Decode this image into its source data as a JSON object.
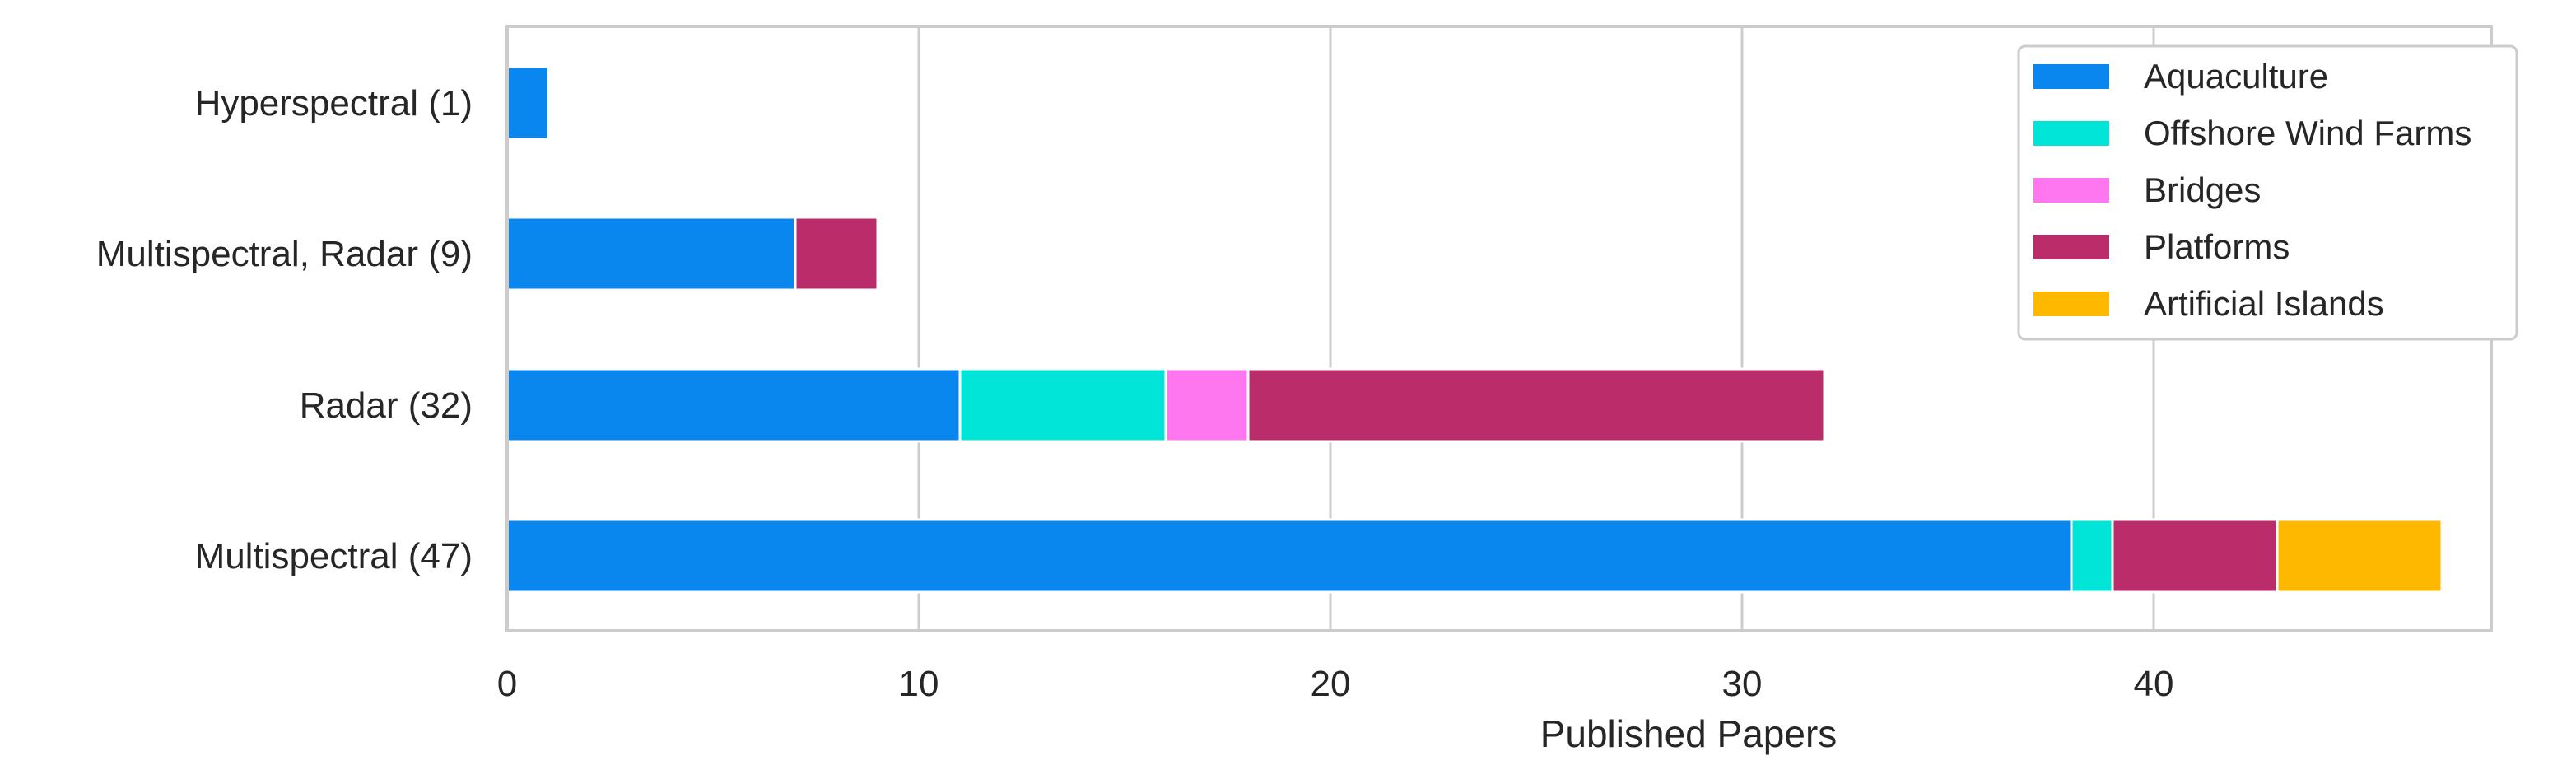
{
  "chart_data": {
    "type": "bar",
    "orientation": "horizontal",
    "stacked": true,
    "title": "",
    "xlabel": "Published Papers",
    "ylabel": "",
    "xlim": [
      0,
      49
    ],
    "xticks": [
      0,
      10,
      20,
      30,
      40
    ],
    "grid": true,
    "legend_position": "top-right",
    "categories": [
      "Hyperspectral (1)",
      "Multispectral, Radar (9)",
      "Radar (32)",
      "Multispectral (47)"
    ],
    "series": [
      {
        "name": "Aquaculture",
        "color": "#0a87ee",
        "values": [
          1,
          7,
          11,
          38
        ]
      },
      {
        "name": "Offshore Wind Farms",
        "color": "#00e5d8",
        "values": [
          0,
          0,
          5,
          1
        ]
      },
      {
        "name": "Bridges",
        "color": "#ff77ee",
        "values": [
          0,
          0,
          2,
          0
        ]
      },
      {
        "name": "Platforms",
        "color": "#bb2c6a",
        "values": [
          0,
          2,
          14,
          4
        ]
      },
      {
        "name": "Artificial Islands",
        "color": "#ffb800",
        "values": [
          0,
          0,
          0,
          4
        ]
      }
    ]
  }
}
